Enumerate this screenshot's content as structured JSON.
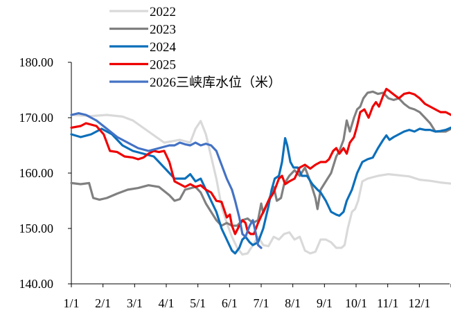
{
  "chart_data": {
    "type": "line",
    "title": "",
    "xlabel": "",
    "ylabel": "",
    "ylim": [
      140,
      180
    ],
    "yticks": [
      "140.00",
      "150.00",
      "160.00",
      "170.00",
      "180.00"
    ],
    "xticks": [
      "1/1",
      "2/1",
      "3/1",
      "4/1",
      "5/1",
      "6/1",
      "7/1",
      "8/1",
      "9/1",
      "10/1",
      "11/1",
      "12/1"
    ],
    "xrange_days": [
      1,
      365
    ],
    "grid": false,
    "legend_position": "top",
    "series": [
      {
        "name": "2022",
        "color": "#d9d9d9",
        "points": [
          [
            1,
            170.5
          ],
          [
            20,
            170.3
          ],
          [
            35,
            170.5
          ],
          [
            50,
            170.2
          ],
          [
            60,
            169.5
          ],
          [
            75,
            167.5
          ],
          [
            90,
            165.5
          ],
          [
            105,
            166.0
          ],
          [
            115,
            165.5
          ],
          [
            120,
            168.0
          ],
          [
            125,
            169.4
          ],
          [
            130,
            167.0
          ],
          [
            135,
            163.0
          ],
          [
            140,
            159.0
          ],
          [
            145,
            154.0
          ],
          [
            150,
            151.0
          ],
          [
            155,
            148.5
          ],
          [
            160,
            146.5
          ],
          [
            165,
            145.3
          ],
          [
            170,
            145.5
          ],
          [
            175,
            147.0
          ],
          [
            180,
            148.5
          ],
          [
            185,
            147.0
          ],
          [
            190,
            146.8
          ],
          [
            195,
            148.5
          ],
          [
            200,
            148.0
          ],
          [
            205,
            149.0
          ],
          [
            210,
            149.3
          ],
          [
            215,
            148.0
          ],
          [
            220,
            148.5
          ],
          [
            225,
            146.0
          ],
          [
            230,
            145.5
          ],
          [
            235,
            145.8
          ],
          [
            240,
            148.0
          ],
          [
            245,
            148.0
          ],
          [
            250,
            147.5
          ],
          [
            255,
            146.5
          ],
          [
            260,
            146.5
          ],
          [
            263,
            147.0
          ],
          [
            266,
            150.0
          ],
          [
            270,
            153.0
          ],
          [
            273,
            153.5
          ],
          [
            276,
            155.0
          ],
          [
            280,
            158.5
          ],
          [
            285,
            159.0
          ],
          [
            295,
            159.5
          ],
          [
            305,
            159.8
          ],
          [
            315,
            159.6
          ],
          [
            325,
            159.4
          ],
          [
            335,
            158.8
          ],
          [
            345,
            158.6
          ],
          [
            355,
            158.3
          ],
          [
            365,
            158.1
          ]
        ]
      },
      {
        "name": "2023",
        "color": "#808080",
        "points": [
          [
            1,
            158.2
          ],
          [
            10,
            158.0
          ],
          [
            18,
            158.2
          ],
          [
            22,
            155.5
          ],
          [
            28,
            155.2
          ],
          [
            35,
            155.5
          ],
          [
            45,
            156.3
          ],
          [
            55,
            157.0
          ],
          [
            65,
            157.3
          ],
          [
            75,
            157.8
          ],
          [
            85,
            157.5
          ],
          [
            95,
            156.0
          ],
          [
            100,
            155.0
          ],
          [
            105,
            155.3
          ],
          [
            110,
            157.0
          ],
          [
            120,
            157.5
          ],
          [
            125,
            156.5
          ],
          [
            130,
            154.5
          ],
          [
            135,
            153.0
          ],
          [
            140,
            151.5
          ],
          [
            145,
            150.5
          ],
          [
            150,
            151.0
          ],
          [
            155,
            150.5
          ],
          [
            160,
            150.5
          ],
          [
            165,
            151.5
          ],
          [
            170,
            151.8
          ],
          [
            175,
            151.0
          ],
          [
            180,
            151.5
          ],
          [
            183,
            154.5
          ],
          [
            185,
            152.8
          ],
          [
            190,
            155.0
          ],
          [
            195,
            157.5
          ],
          [
            198,
            155.0
          ],
          [
            202,
            155.5
          ],
          [
            205,
            158.0
          ],
          [
            210,
            159.5
          ],
          [
            215,
            160.5
          ],
          [
            220,
            159.5
          ],
          [
            225,
            161.0
          ],
          [
            230,
            158.5
          ],
          [
            235,
            155.5
          ],
          [
            237,
            153.5
          ],
          [
            240,
            157.0
          ],
          [
            245,
            158.5
          ],
          [
            250,
            160.0
          ],
          [
            255,
            163.0
          ],
          [
            258,
            164.0
          ],
          [
            262,
            166.0
          ],
          [
            265,
            169.5
          ],
          [
            268,
            167.5
          ],
          [
            272,
            170.0
          ],
          [
            275,
            171.5
          ],
          [
            278,
            172.0
          ],
          [
            281,
            173.5
          ],
          [
            285,
            174.5
          ],
          [
            290,
            174.7
          ],
          [
            295,
            174.3
          ],
          [
            300,
            174.5
          ],
          [
            305,
            173.5
          ],
          [
            310,
            173.2
          ],
          [
            315,
            173.5
          ],
          [
            320,
            172.5
          ],
          [
            325,
            171.8
          ],
          [
            330,
            171.5
          ],
          [
            335,
            171.0
          ],
          [
            340,
            170.0
          ],
          [
            345,
            169.0
          ],
          [
            350,
            167.5
          ],
          [
            355,
            167.5
          ],
          [
            360,
            167.5
          ],
          [
            365,
            168.0
          ]
        ]
      },
      {
        "name": "2024",
        "color": "#0c6fba",
        "points": [
          [
            1,
            167.0
          ],
          [
            10,
            166.5
          ],
          [
            20,
            167.0
          ],
          [
            30,
            168.0
          ],
          [
            40,
            167.0
          ],
          [
            50,
            165.0
          ],
          [
            60,
            164.0
          ],
          [
            70,
            163.5
          ],
          [
            80,
            163.0
          ],
          [
            85,
            162.0
          ],
          [
            90,
            161.0
          ],
          [
            95,
            160.0
          ],
          [
            100,
            159.0
          ],
          [
            110,
            159.0
          ],
          [
            115,
            159.8
          ],
          [
            120,
            158.5
          ],
          [
            125,
            159.0
          ],
          [
            130,
            157.0
          ],
          [
            135,
            155.0
          ],
          [
            140,
            153.0
          ],
          [
            145,
            150.0
          ],
          [
            150,
            148.0
          ],
          [
            155,
            146.0
          ],
          [
            158,
            145.5
          ],
          [
            162,
            146.5
          ],
          [
            165,
            148.0
          ],
          [
            168,
            148.5
          ],
          [
            172,
            147.5
          ],
          [
            175,
            147.0
          ],
          [
            180,
            147.5
          ],
          [
            185,
            150.0
          ],
          [
            190,
            154.0
          ],
          [
            193,
            157.0
          ],
          [
            196,
            159.0
          ],
          [
            200,
            159.5
          ],
          [
            203,
            162.0
          ],
          [
            206,
            166.3
          ],
          [
            208,
            165.0
          ],
          [
            211,
            162.0
          ],
          [
            214,
            161.0
          ],
          [
            218,
            161.0
          ],
          [
            222,
            159.5
          ],
          [
            227,
            159.5
          ],
          [
            232,
            158.0
          ],
          [
            237,
            157.0
          ],
          [
            240,
            156.5
          ],
          [
            245,
            155.0
          ],
          [
            250,
            153.0
          ],
          [
            255,
            152.5
          ],
          [
            258,
            152.3
          ],
          [
            262,
            153.0
          ],
          [
            265,
            155.0
          ],
          [
            270,
            157.0
          ],
          [
            275,
            160.0
          ],
          [
            280,
            162.0
          ],
          [
            285,
            162.5
          ],
          [
            290,
            162.8
          ],
          [
            295,
            164.5
          ],
          [
            300,
            166.0
          ],
          [
            303,
            166.8
          ],
          [
            306,
            166.0
          ],
          [
            310,
            166.5
          ],
          [
            315,
            167.0
          ],
          [
            320,
            167.5
          ],
          [
            325,
            167.8
          ],
          [
            330,
            167.5
          ],
          [
            335,
            168.0
          ],
          [
            340,
            167.8
          ],
          [
            345,
            167.8
          ],
          [
            350,
            167.5
          ],
          [
            355,
            167.6
          ],
          [
            360,
            167.8
          ],
          [
            365,
            168.2
          ]
        ]
      },
      {
        "name": "2025",
        "color": "#ef0000",
        "points": [
          [
            1,
            168.2
          ],
          [
            10,
            168.5
          ],
          [
            15,
            169.0
          ],
          [
            25,
            168.5
          ],
          [
            32,
            167.0
          ],
          [
            38,
            164.0
          ],
          [
            45,
            163.8
          ],
          [
            52,
            163.0
          ],
          [
            60,
            162.8
          ],
          [
            65,
            162.5
          ],
          [
            70,
            162.8
          ],
          [
            75,
            163.5
          ],
          [
            80,
            164.0
          ],
          [
            85,
            163.8
          ],
          [
            90,
            164.0
          ],
          [
            95,
            162.0
          ],
          [
            100,
            158.5
          ],
          [
            105,
            158.0
          ],
          [
            110,
            157.5
          ],
          [
            115,
            158.0
          ],
          [
            120,
            157.5
          ],
          [
            125,
            157.8
          ],
          [
            130,
            157.0
          ],
          [
            135,
            156.5
          ],
          [
            140,
            155.0
          ],
          [
            145,
            154.8
          ],
          [
            150,
            152.0
          ],
          [
            153,
            152.5
          ],
          [
            155,
            150.5
          ],
          [
            158,
            149.0
          ],
          [
            162,
            150.5
          ],
          [
            165,
            151.5
          ],
          [
            168,
            151.0
          ],
          [
            170,
            149.5
          ],
          [
            173,
            149.0
          ],
          [
            176,
            149.0
          ],
          [
            180,
            151.0
          ],
          [
            185,
            153.0
          ],
          [
            190,
            155.0
          ],
          [
            195,
            156.5
          ],
          [
            200,
            159.0
          ],
          [
            203,
            159.5
          ],
          [
            206,
            158.0
          ],
          [
            210,
            158.5
          ],
          [
            215,
            159.0
          ],
          [
            220,
            161.0
          ],
          [
            225,
            161.5
          ],
          [
            230,
            160.8
          ],
          [
            235,
            161.5
          ],
          [
            240,
            162.0
          ],
          [
            245,
            162.0
          ],
          [
            248,
            162.5
          ],
          [
            252,
            164.0
          ],
          [
            255,
            164.5
          ],
          [
            258,
            163.5
          ],
          [
            262,
            164.5
          ],
          [
            265,
            163.5
          ],
          [
            268,
            165.5
          ],
          [
            272,
            166.5
          ],
          [
            275,
            168.5
          ],
          [
            278,
            171.0
          ],
          [
            282,
            171.5
          ],
          [
            286,
            170.0
          ],
          [
            290,
            172.0
          ],
          [
            293,
            172.8
          ],
          [
            296,
            172.0
          ],
          [
            300,
            174.0
          ],
          [
            303,
            175.2
          ],
          [
            306,
            174.8
          ],
          [
            310,
            174.2
          ],
          [
            315,
            173.5
          ],
          [
            320,
            174.3
          ],
          [
            325,
            174.5
          ],
          [
            330,
            174.2
          ],
          [
            335,
            173.5
          ],
          [
            340,
            172.5
          ],
          [
            345,
            172.0
          ],
          [
            350,
            171.5
          ],
          [
            355,
            171.0
          ],
          [
            360,
            171.0
          ],
          [
            365,
            170.5
          ]
        ]
      },
      {
        "name": "2026三峡库水位（米）",
        "color": "#4472c4",
        "points": [
          [
            1,
            170.5
          ],
          [
            8,
            170.8
          ],
          [
            15,
            170.5
          ],
          [
            25,
            169.5
          ],
          [
            35,
            168.0
          ],
          [
            45,
            166.5
          ],
          [
            55,
            165.5
          ],
          [
            65,
            164.5
          ],
          [
            75,
            164.0
          ],
          [
            85,
            164.5
          ],
          [
            95,
            165.0
          ],
          [
            100,
            165.0
          ],
          [
            105,
            165.5
          ],
          [
            110,
            165.2
          ],
          [
            115,
            165.0
          ],
          [
            120,
            165.5
          ],
          [
            125,
            165.0
          ],
          [
            130,
            165.3
          ],
          [
            135,
            165.0
          ],
          [
            140,
            164.0
          ],
          [
            145,
            161.5
          ],
          [
            150,
            159.0
          ],
          [
            155,
            157.0
          ],
          [
            158,
            155.0
          ],
          [
            162,
            152.0
          ],
          [
            165,
            149.0
          ],
          [
            168,
            148.5
          ],
          [
            172,
            150.5
          ],
          [
            175,
            151.5
          ],
          [
            178,
            149.0
          ],
          [
            180,
            147.0
          ],
          [
            183,
            146.5
          ]
        ]
      }
    ]
  }
}
